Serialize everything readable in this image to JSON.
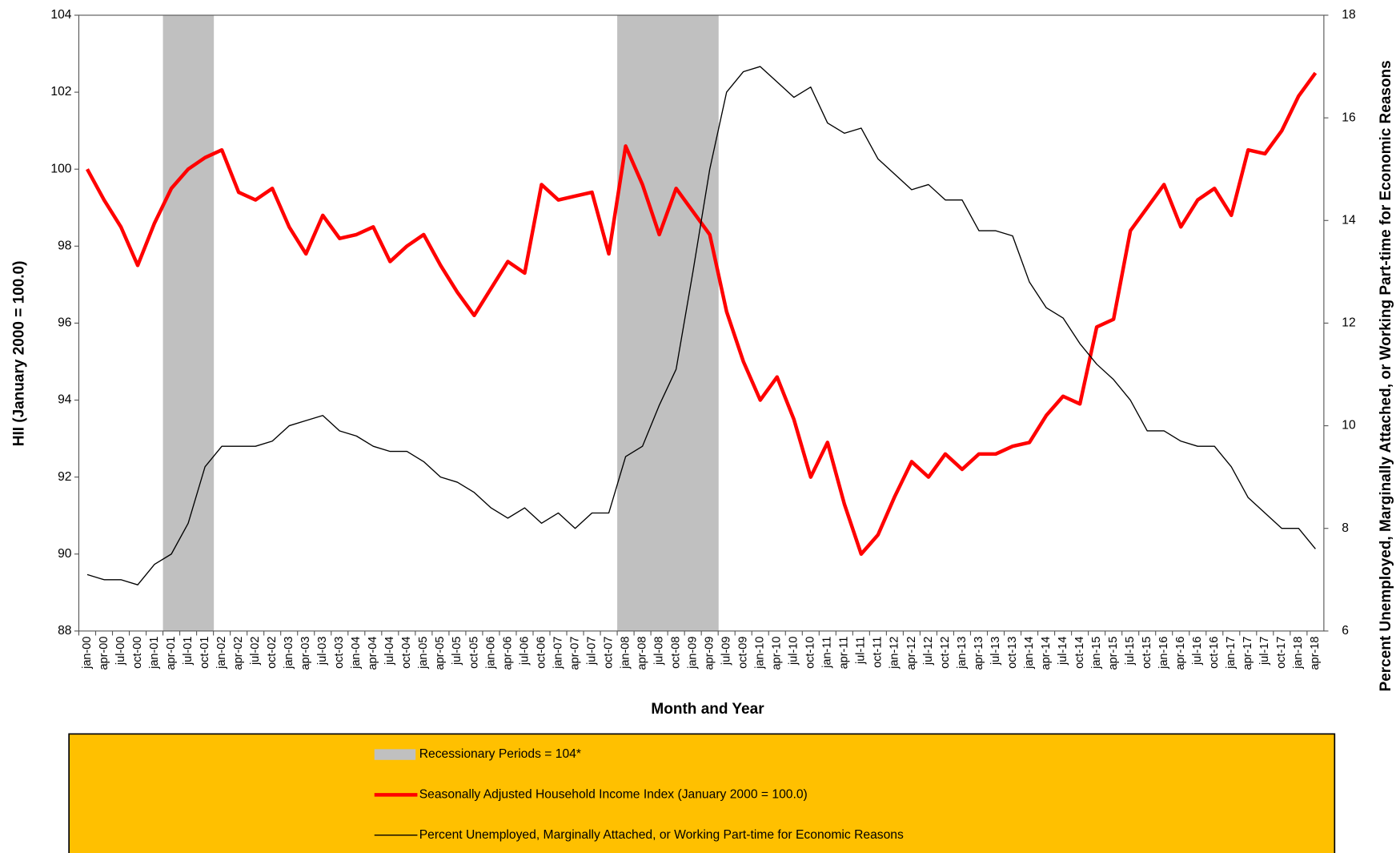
{
  "chart_data": {
    "type": "line",
    "x_label": "Month and Year",
    "y_label": "HII (January 2000 = 100.0)",
    "y2_label": "Percent Unemployed, Marginally Attached, or Working Part-time for Economic Reasons",
    "categories": [
      "jan-00",
      "apr-00",
      "jul-00",
      "oct-00",
      "jan-01",
      "apr-01",
      "jul-01",
      "oct-01",
      "jan-02",
      "apr-02",
      "jul-02",
      "oct-02",
      "jan-03",
      "apr-03",
      "jul-03",
      "oct-03",
      "jan-04",
      "apr-04",
      "jul-04",
      "oct-04",
      "jan-05",
      "apr-05",
      "jul-05",
      "oct-05",
      "jan-06",
      "apr-06",
      "jul-06",
      "oct-06",
      "jan-07",
      "apr-07",
      "jul-07",
      "oct-07",
      "jan-08",
      "apr-08",
      "jul-08",
      "oct-08",
      "jan-09",
      "apr-09",
      "jul-09",
      "oct-09",
      "jan-10",
      "apr-10",
      "jul-10",
      "oct-10",
      "jan-11",
      "apr-11",
      "jul-11",
      "oct-11",
      "jan-12",
      "apr-12",
      "jul-12",
      "oct-12",
      "jan-13",
      "apr-13",
      "jul-13",
      "oct-13",
      "jan-14",
      "apr-14",
      "jul-14",
      "oct-14",
      "jan-15",
      "apr-15",
      "jul-15",
      "oct-15",
      "jan-16",
      "apr-16",
      "jul-16",
      "oct-16",
      "jan-17",
      "apr-17",
      "jul-17",
      "oct-17",
      "jan-18",
      "apr-18"
    ],
    "series": [
      {
        "name": "Recessionary Periods = 104*",
        "color": "#c0c0c0",
        "kind": "bar",
        "values": [
          null,
          null,
          null,
          null,
          null,
          104,
          104,
          104,
          null,
          null,
          null,
          null,
          null,
          null,
          null,
          null,
          null,
          null,
          null,
          null,
          null,
          null,
          null,
          null,
          null,
          null,
          null,
          null,
          null,
          null,
          null,
          null,
          104,
          104,
          104,
          104,
          104,
          104,
          null,
          null,
          null,
          null,
          null,
          null,
          null,
          null,
          null,
          null,
          null,
          null,
          null,
          null,
          null,
          null,
          null,
          null,
          null,
          null,
          null,
          null,
          null,
          null,
          null,
          null,
          null,
          null,
          null,
          null,
          null,
          null,
          null,
          null,
          null,
          null
        ]
      },
      {
        "name": "Seasonally Adjusted Household Income Index (January 2000 = 100.0)",
        "color": "#ff0000",
        "kind": "line",
        "width": 4,
        "values": [
          100.0,
          99.2,
          98.5,
          97.5,
          98.6,
          99.5,
          100.0,
          100.3,
          100.5,
          99.4,
          99.2,
          99.5,
          98.5,
          97.8,
          98.8,
          98.2,
          98.3,
          98.5,
          97.6,
          98.0,
          98.3,
          97.5,
          96.8,
          96.2,
          96.9,
          97.6,
          97.3,
          99.6,
          99.2,
          99.3,
          99.4,
          97.8,
          100.6,
          99.6,
          98.3,
          99.5,
          98.9,
          98.3,
          96.3,
          95.0,
          94.0,
          94.6,
          93.5,
          92.0,
          92.9,
          91.3,
          90.0,
          90.5,
          91.5,
          92.4,
          92.0,
          92.6,
          92.2,
          92.6,
          92.6,
          92.8,
          92.9,
          93.6,
          94.1,
          93.9,
          95.9,
          96.1,
          98.4,
          99.0,
          99.6,
          98.5,
          99.2,
          99.5,
          98.8,
          100.5,
          100.4,
          101.0,
          101.9,
          102.5
        ]
      },
      {
        "name": "Percent Unemployed,  Marginally Attached, or Working Part-time for Economic Reasons",
        "color": "#000000",
        "kind": "line",
        "width": 1.2,
        "axis": "y2",
        "values": [
          7.1,
          7.0,
          7.0,
          6.9,
          7.3,
          7.5,
          8.1,
          9.2,
          9.6,
          9.6,
          9.6,
          9.7,
          10.0,
          10.1,
          10.2,
          9.9,
          9.8,
          9.6,
          9.5,
          9.5,
          9.3,
          9.0,
          8.9,
          8.7,
          8.4,
          8.2,
          8.4,
          8.1,
          8.3,
          8.0,
          8.3,
          8.3,
          9.4,
          9.6,
          10.4,
          11.1,
          13.0,
          15.0,
          16.5,
          16.9,
          17.0,
          16.7,
          16.4,
          16.6,
          15.9,
          15.7,
          15.8,
          15.2,
          14.9,
          14.6,
          14.7,
          14.4,
          14.4,
          13.8,
          13.8,
          13.7,
          12.8,
          12.3,
          12.1,
          11.6,
          11.2,
          10.9,
          10.5,
          9.9,
          9.9,
          9.7,
          9.6,
          9.6,
          9.2,
          8.6,
          8.3,
          8.0,
          8.0,
          7.6
        ]
      }
    ],
    "ylim": [
      88,
      104
    ],
    "yticks": [
      88,
      90,
      92,
      94,
      96,
      98,
      100,
      102,
      104
    ],
    "y2lim": [
      6,
      18
    ],
    "y2ticks": [
      6,
      8,
      10,
      12,
      14,
      16,
      18
    ],
    "grid": false,
    "legend": "bottom"
  }
}
